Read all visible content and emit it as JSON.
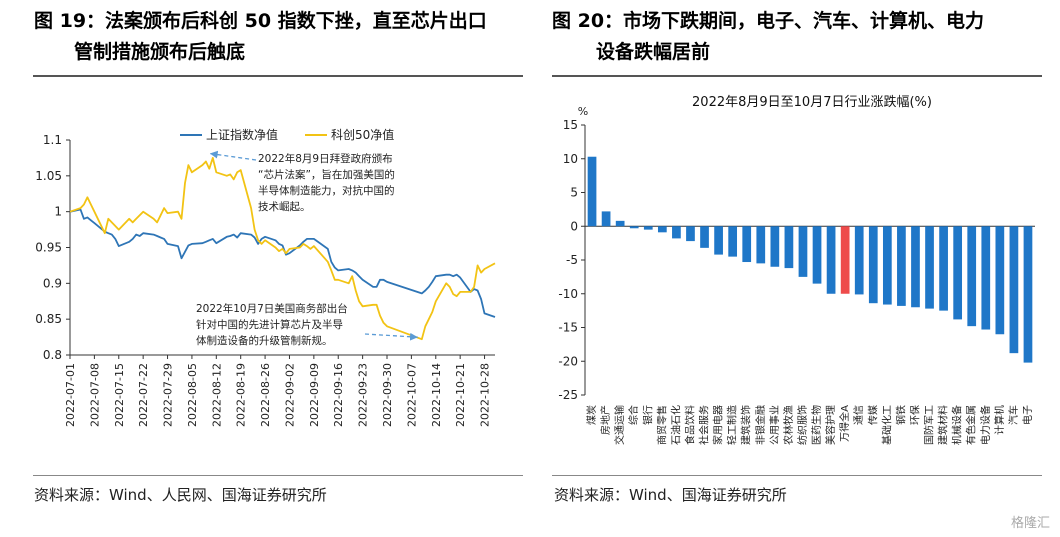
{
  "figure19": {
    "title_line1": "图 19：法案颁布后科创 50 指数下挫，直至芯片出口",
    "title_line2": "管制措施颁布后触底",
    "source": "资料来源：Wind、人民网、国海证券研究所"
  },
  "figure20": {
    "title_line1": "图 20：市场下跌期间，电子、汽车、计算机、电力",
    "title_line2": "设备跌幅居前",
    "source": "资料来源：Wind、国海证券研究所"
  },
  "watermark": "格隆汇",
  "chart_data": [
    {
      "type": "line",
      "title": "",
      "ylim": [
        0.8,
        1.1
      ],
      "y_ticks": [
        "0.8",
        "0.85",
        "0.9",
        "0.95",
        "1",
        "1.05",
        "1.1"
      ],
      "x_tick_labels": [
        "2022-07-01",
        "2022-07-08",
        "2022-07-15",
        "2022-07-22",
        "2022-07-29",
        "2022-08-05",
        "2022-08-12",
        "2022-08-19",
        "2022-08-26",
        "2022-09-02",
        "2022-09-09",
        "2022-09-16",
        "2022-09-23",
        "2022-09-30",
        "2022-10-07",
        "2022-10-14",
        "2022-10-21",
        "2022-10-28"
      ],
      "legend_position": "top",
      "colors": {
        "sse": "#2e75b6",
        "star50": "#f2c314",
        "arrow": "#5b9bd5"
      },
      "series": [
        {
          "name": "上证指数净值",
          "x": [
            "2022-07-01",
            "2022-07-04",
            "2022-07-05",
            "2022-07-06",
            "2022-07-07",
            "2022-07-08",
            "2022-07-11",
            "2022-07-12",
            "2022-07-13",
            "2022-07-14",
            "2022-07-15",
            "2022-07-18",
            "2022-07-19",
            "2022-07-20",
            "2022-07-21",
            "2022-07-22",
            "2022-07-25",
            "2022-07-26",
            "2022-07-27",
            "2022-07-28",
            "2022-07-29",
            "2022-08-01",
            "2022-08-02",
            "2022-08-03",
            "2022-08-04",
            "2022-08-05",
            "2022-08-08",
            "2022-08-09",
            "2022-08-10",
            "2022-08-11",
            "2022-08-12",
            "2022-08-15",
            "2022-08-16",
            "2022-08-17",
            "2022-08-18",
            "2022-08-19",
            "2022-08-22",
            "2022-08-23",
            "2022-08-24",
            "2022-08-25",
            "2022-08-26",
            "2022-08-29",
            "2022-08-30",
            "2022-08-31",
            "2022-09-01",
            "2022-09-02",
            "2022-09-05",
            "2022-09-06",
            "2022-09-07",
            "2022-09-08",
            "2022-09-09",
            "2022-09-13",
            "2022-09-14",
            "2022-09-15",
            "2022-09-16",
            "2022-09-19",
            "2022-09-20",
            "2022-09-21",
            "2022-09-22",
            "2022-09-23",
            "2022-09-26",
            "2022-09-27",
            "2022-09-28",
            "2022-09-29",
            "2022-09-30",
            "2022-10-10",
            "2022-10-11",
            "2022-10-12",
            "2022-10-13",
            "2022-10-14",
            "2022-10-17",
            "2022-10-18",
            "2022-10-19",
            "2022-10-20",
            "2022-10-21",
            "2022-10-24",
            "2022-10-25",
            "2022-10-26",
            "2022-10-27",
            "2022-10-28",
            "2022-10-31"
          ],
          "values": [
            1.0,
            1.003,
            0.99,
            0.992,
            0.988,
            0.984,
            0.972,
            0.97,
            0.968,
            0.962,
            0.952,
            0.958,
            0.962,
            0.968,
            0.966,
            0.97,
            0.968,
            0.966,
            0.964,
            0.962,
            0.955,
            0.952,
            0.935,
            0.944,
            0.953,
            0.955,
            0.956,
            0.958,
            0.96,
            0.962,
            0.956,
            0.965,
            0.966,
            0.968,
            0.964,
            0.97,
            0.968,
            0.964,
            0.955,
            0.962,
            0.965,
            0.96,
            0.955,
            0.953,
            0.94,
            0.942,
            0.953,
            0.958,
            0.962,
            0.962,
            0.962,
            0.948,
            0.93,
            0.922,
            0.918,
            0.92,
            0.918,
            0.915,
            0.91,
            0.905,
            0.895,
            0.895,
            0.905,
            0.905,
            0.902,
            0.886,
            0.89,
            0.895,
            0.902,
            0.91,
            0.912,
            0.912,
            0.91,
            0.912,
            0.908,
            0.888,
            0.892,
            0.89,
            0.878,
            0.858,
            0.853
          ]
        },
        {
          "name": "科创50净值",
          "x": [
            "2022-07-01",
            "2022-07-04",
            "2022-07-05",
            "2022-07-06",
            "2022-07-07",
            "2022-07-08",
            "2022-07-11",
            "2022-07-12",
            "2022-07-13",
            "2022-07-14",
            "2022-07-15",
            "2022-07-18",
            "2022-07-19",
            "2022-07-20",
            "2022-07-21",
            "2022-07-22",
            "2022-07-25",
            "2022-07-26",
            "2022-07-27",
            "2022-07-28",
            "2022-07-29",
            "2022-08-01",
            "2022-08-02",
            "2022-08-03",
            "2022-08-04",
            "2022-08-05",
            "2022-08-08",
            "2022-08-09",
            "2022-08-10",
            "2022-08-11",
            "2022-08-12",
            "2022-08-15",
            "2022-08-16",
            "2022-08-17",
            "2022-08-18",
            "2022-08-19",
            "2022-08-22",
            "2022-08-23",
            "2022-08-24",
            "2022-08-25",
            "2022-08-26",
            "2022-08-29",
            "2022-08-30",
            "2022-08-31",
            "2022-09-01",
            "2022-09-02",
            "2022-09-05",
            "2022-09-06",
            "2022-09-07",
            "2022-09-08",
            "2022-09-09",
            "2022-09-13",
            "2022-09-14",
            "2022-09-15",
            "2022-09-16",
            "2022-09-19",
            "2022-09-20",
            "2022-09-21",
            "2022-09-22",
            "2022-09-23",
            "2022-09-26",
            "2022-09-27",
            "2022-09-28",
            "2022-09-29",
            "2022-09-30",
            "2022-10-10",
            "2022-10-11",
            "2022-10-12",
            "2022-10-13",
            "2022-10-14",
            "2022-10-17",
            "2022-10-18",
            "2022-10-19",
            "2022-10-20",
            "2022-10-21",
            "2022-10-24",
            "2022-10-25",
            "2022-10-26",
            "2022-10-27",
            "2022-10-28",
            "2022-10-31"
          ],
          "values": [
            1.0,
            1.005,
            1.01,
            1.02,
            1.01,
            1.0,
            0.97,
            0.99,
            0.985,
            0.98,
            0.975,
            0.99,
            0.985,
            0.99,
            0.995,
            1.0,
            0.99,
            0.985,
            0.995,
            1.005,
            0.998,
            1.0,
            0.99,
            1.04,
            1.065,
            1.055,
            1.065,
            1.07,
            1.06,
            1.075,
            1.055,
            1.05,
            1.052,
            1.045,
            1.055,
            1.058,
            1.005,
            0.975,
            0.96,
            0.955,
            0.96,
            0.95,
            0.945,
            0.948,
            0.942,
            0.948,
            0.95,
            0.955,
            0.952,
            0.948,
            0.952,
            0.93,
            0.918,
            0.905,
            0.905,
            0.9,
            0.91,
            0.89,
            0.875,
            0.868,
            0.87,
            0.87,
            0.855,
            0.845,
            0.84,
            0.822,
            0.84,
            0.85,
            0.86,
            0.875,
            0.9,
            0.895,
            0.885,
            0.882,
            0.888,
            0.888,
            0.895,
            0.925,
            0.915,
            0.92,
            0.928
          ]
        }
      ],
      "annotations": [
        {
          "text": [
            "2022年8月9日拜登政府颁布",
            "“芯片法案”，旨在加强美国的",
            "半导体制造能力，对抗中国的",
            "技术崛起。"
          ],
          "points_to": "2022-08-09"
        },
        {
          "text": [
            "2022年10月7日美国商务部出台",
            "针对中国的先进计算芯片及半导",
            "体制造设备的升级管制新规。"
          ],
          "points_to": "2022-10-10"
        }
      ]
    },
    {
      "type": "bar",
      "title": "2022年8月9日至10月7日行业涨跌幅(%)",
      "ylabel": "%",
      "ylim": [
        -25,
        15
      ],
      "y_ticks": [
        "-25",
        "-20",
        "-15",
        "-10",
        "-5",
        "0",
        "5",
        "10",
        "15"
      ],
      "categories": [
        "煤炭",
        "房地产",
        "交通运输",
        "综合",
        "银行",
        "商贸零售",
        "石油石化",
        "食品饮料",
        "社会服务",
        "家用电器",
        "轻工制造",
        "建筑装饰",
        "非银金融",
        "公用事业",
        "农林牧渔",
        "纺织服饰",
        "医药生物",
        "美容护理",
        "万得全A",
        "通信",
        "传媒",
        "基础化工",
        "钢铁",
        "环保",
        "国防军工",
        "建筑材料",
        "机械设备",
        "有色金属",
        "电力设备",
        "计算机",
        "汽车",
        "电子"
      ],
      "values": [
        10.3,
        2.2,
        0.8,
        -0.3,
        -0.5,
        -0.9,
        -1.8,
        -2.2,
        -3.2,
        -4.2,
        -4.5,
        -5.3,
        -5.5,
        -6.0,
        -6.2,
        -7.5,
        -8.5,
        -10.0,
        -10.0,
        -10.1,
        -11.4,
        -11.6,
        -11.8,
        -12.0,
        -12.2,
        -12.5,
        -13.8,
        -14.8,
        -15.3,
        -16.0,
        -18.8,
        -20.2
      ],
      "colors": {
        "bar": "#1f77c8",
        "highlight": "#ee4b4b"
      },
      "highlight_category": "万得全A"
    }
  ]
}
